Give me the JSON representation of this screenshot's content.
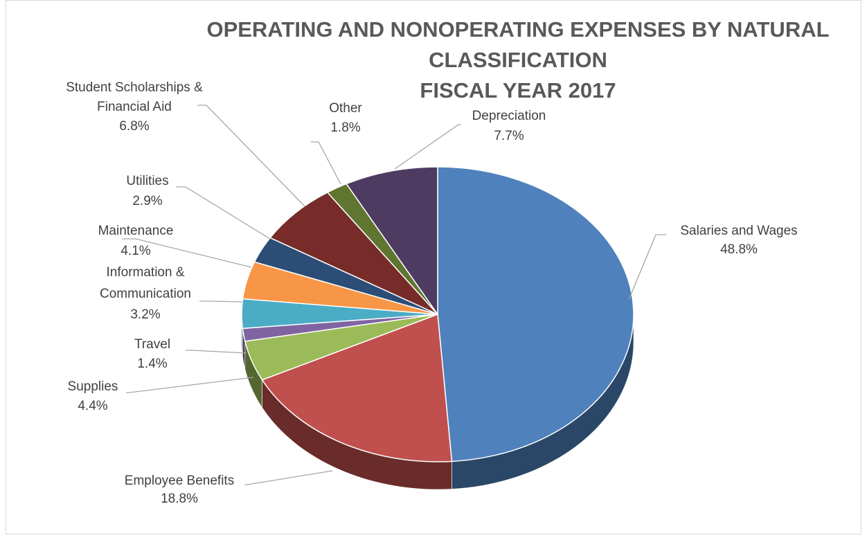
{
  "chart_data": {
    "type": "pie",
    "title": "OPERATING AND NONOPERATING EXPENSES BY NATURAL CLASSIFICATION",
    "subtitle": "FISCAL YEAR 2017",
    "unit": "%",
    "slices": [
      {
        "label": "Salaries and Wages",
        "value": 48.8,
        "display": "48.8%",
        "color": "#4f81bd"
      },
      {
        "label": "Employee Benefits",
        "value": 18.8,
        "display": "18.8%",
        "color": "#c0504d"
      },
      {
        "label": "Supplies",
        "value": 4.4,
        "display": "4.4%",
        "color": "#9bbb59"
      },
      {
        "label": "Travel",
        "value": 1.4,
        "display": "1.4%",
        "color": "#8064a2"
      },
      {
        "label": "Information & Communication",
        "value": 3.2,
        "display": "3.2%",
        "color": "#4bacc6"
      },
      {
        "label": "Maintenance",
        "value": 4.1,
        "display": "4.1%",
        "color": "#f79646"
      },
      {
        "label": "Utilities",
        "value": 2.9,
        "display": "2.9%",
        "color": "#2c4d75"
      },
      {
        "label": "Student Scholarships & Financial Aid",
        "value": 6.8,
        "display": "6.8%",
        "color": "#772c2a"
      },
      {
        "label": "Other",
        "value": 1.8,
        "display": "1.8%",
        "color": "#5f7530"
      },
      {
        "label": "Depreciation",
        "value": 7.7,
        "display": "7.7%",
        "color": "#4d3b62"
      }
    ],
    "legend": "none",
    "start_angle": "12 o'clock, clockwise",
    "style": "3d-pie"
  }
}
